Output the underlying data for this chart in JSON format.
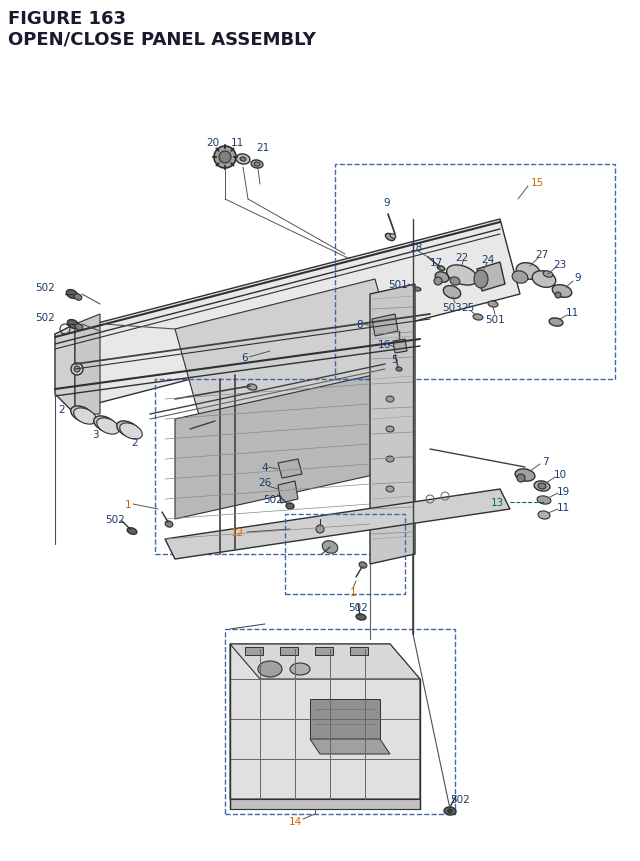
{
  "title_line1": "FIGURE 163",
  "title_line2": "OPEN/CLOSE PANEL ASSEMBLY",
  "title_color": "#1a1a2e",
  "bg_color": "#ffffff",
  "fig_width": 6.4,
  "fig_height": 8.62,
  "dpi": 100,
  "blue_color": "#1a3a6b",
  "orange_color": "#cc6600",
  "teal_color": "#006666",
  "line_color": "#303030",
  "dash_color": "#4466aa"
}
